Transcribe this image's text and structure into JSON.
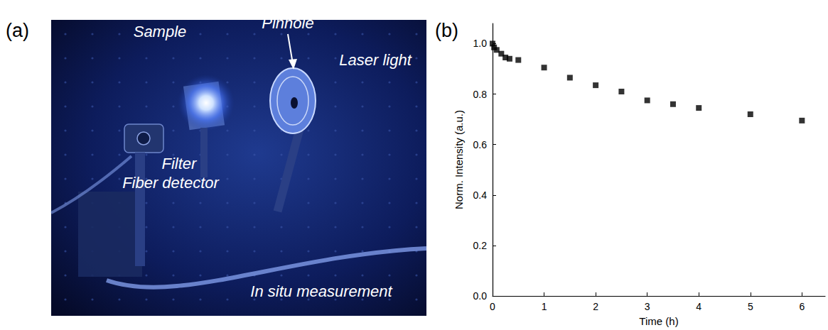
{
  "panel_labels": [
    "(a)",
    "(b)"
  ],
  "photo": {
    "labels": [
      "Sample",
      "Pinhole",
      "Laser light",
      "Filter",
      "Fiber detector",
      "In situ measurement"
    ]
  },
  "chart_data": {
    "type": "scatter",
    "x_label": "Time (h)",
    "y_label": "Norm. Intensity (a.u.)",
    "x": [
      0,
      0.03,
      0.08,
      0.17,
      0.25,
      0.33,
      0.5,
      1,
      1.5,
      2,
      2.5,
      3,
      3.5,
      4,
      5,
      6
    ],
    "values": [
      1.0,
      0.985,
      0.975,
      0.96,
      0.945,
      0.94,
      0.935,
      0.905,
      0.865,
      0.835,
      0.81,
      0.775,
      0.76,
      0.745,
      0.72,
      0.695
    ],
    "color": "#000000",
    "marker": "square",
    "xlim": [
      0,
      6.45
    ],
    "xticks": [
      0,
      1,
      2,
      3,
      4,
      5,
      6
    ],
    "ylim": [
      0,
      1.08
    ],
    "yticks": [
      {
        "value": 0,
        "label": "0.0"
      },
      {
        "value": 0.2,
        "label": "0.2"
      },
      {
        "value": 0.4,
        "label": "0.4"
      },
      {
        "value": 0.6,
        "label": "0.6"
      },
      {
        "value": 0.8,
        "label": "0.8"
      },
      {
        "value": 1,
        "label": "1.0"
      }
    ],
    "grid": false
  }
}
